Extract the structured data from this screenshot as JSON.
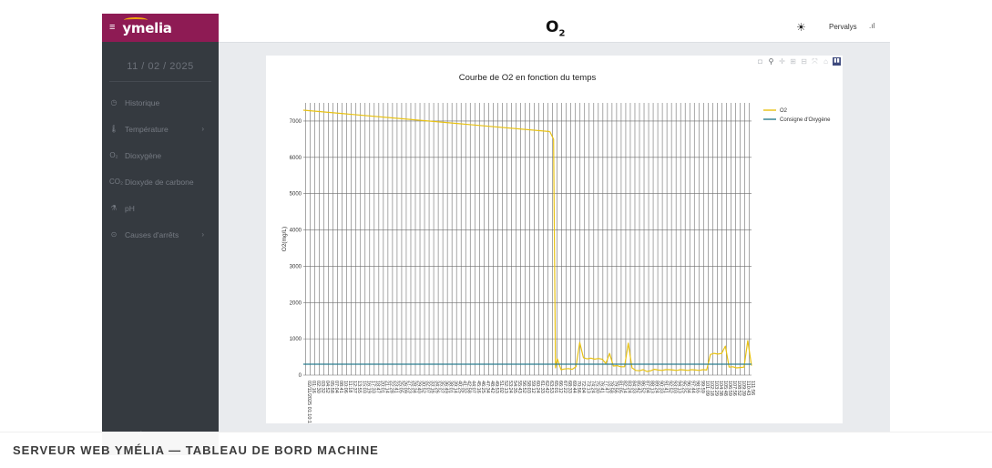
{
  "app": {
    "brand": "ymelia",
    "title_base": "O",
    "title_sub": "2",
    "user": "Pervalys"
  },
  "sidebar": {
    "date": "11 / 02 / 2025",
    "items": [
      {
        "label": "Historique",
        "icon": "history-icon",
        "glyph": "◷",
        "chevron": false
      },
      {
        "label": "Température",
        "icon": "thermometer-icon",
        "glyph": "🌡",
        "chevron": true
      },
      {
        "label": "Dioxygène",
        "icon": "o2-icon",
        "glyph": "O₂",
        "chevron": false
      },
      {
        "label": "Dioxyde de carbone",
        "icon": "co2-icon",
        "glyph": "CO₂",
        "chevron": false
      },
      {
        "label": "pH",
        "icon": "flask-icon",
        "glyph": "⚗",
        "chevron": false
      },
      {
        "label": "Causes d'arrêts",
        "icon": "stop-cause-icon",
        "glyph": "⊙",
        "chevron": true
      }
    ],
    "footer": "⌂"
  },
  "caption": "SERVEUR WEB YMÉLIA — TABLEAU DE BORD MACHINE",
  "colors": {
    "brand": "#8e1b54",
    "sidebar": "#353a40",
    "o2_series": "#e8c213",
    "setpoint_series": "#2a7d8f"
  },
  "chart_data": {
    "type": "line",
    "title": "Courbe de O2 en fonction du temps",
    "xlabel": "",
    "ylabel": "O2(mg/L)",
    "ylim": [
      0,
      7500
    ],
    "yticks": [
      0,
      1000,
      2000,
      3000,
      4000,
      5000,
      6000,
      7000
    ],
    "grid": true,
    "legend_position": "top-right",
    "n_points": 120,
    "x_tick_labels": [
      "02/11/2025 01:10:10",
      "01:16",
      "02:30",
      "03:32",
      "04:52",
      "05:58",
      "07:04",
      "08:41",
      "10:06",
      "11:18",
      "12:37",
      "13:55",
      "15:03",
      "16:19",
      "17:33",
      "18:47",
      "20:01",
      "21:14",
      "22:28",
      "23:41",
      "25:05",
      "26:09",
      "27:23",
      "28:34",
      "29:40",
      "30:52",
      "32:07",
      "33:16",
      "34:26",
      "35:37",
      "36:49",
      "38:01",
      "39:14",
      "40:25",
      "41:32",
      "42:58",
      "44:07",
      "45:16",
      "46:25",
      "47:34",
      "48:42",
      "49:53",
      "51:02",
      "52:13",
      "53:24",
      "54:35",
      "55:43",
      "56:52",
      "58:03",
      "59:12",
      "60:24",
      "61:33",
      "62:42",
      "63:53",
      "65:01",
      "66:12",
      "67:22",
      "68:33",
      "69:44",
      "70:56",
      "72:04",
      "73:13",
      "74:24",
      "75:30",
      "76:41",
      "77:47",
      "78:58",
      "79:56",
      "81:05",
      "82:14",
      "83:24",
      "84:33",
      "85:42",
      "86:52",
      "87:04",
      "88:13",
      "89:24",
      "90:33",
      "91:41",
      "92:52",
      "93:03",
      "94:13",
      "95:25",
      "96:34",
      "97:44",
      "98:55",
      "99:59",
      "101:09",
      "102:18",
      "103:29",
      "104:38",
      "105:48",
      "106:59",
      "107:56",
      "108:52",
      "109:39",
      "110:43",
      "111:56"
    ],
    "series": [
      {
        "name": "O2",
        "segments": [
          {
            "x": [
              0,
              66
            ],
            "y": [
              7300,
              6710
            ]
          },
          {
            "x": [
              66,
              67,
              67.5,
              68,
              69,
              70,
              71,
              72,
              73,
              74,
              75,
              76,
              77,
              78,
              79,
              80,
              81,
              82,
              83,
              84,
              85,
              86,
              87,
              88,
              89,
              90,
              91,
              92,
              93,
              94,
              95,
              96,
              97,
              98,
              99,
              100,
              101,
              102,
              103,
              104,
              105,
              106,
              107,
              108,
              109,
              110,
              111,
              112,
              113,
              114,
              115,
              116,
              117,
              118,
              119,
              120
            ],
            "y": [
              6710,
              6500,
              200,
              450,
              150,
              170,
              180,
              160,
              230,
              900,
              480,
              450,
              470,
              440,
              460,
              440,
              320,
              600,
              250,
              260,
              230,
              230,
              880,
              200,
              130,
              120,
              150,
              100,
              120,
              160,
              140,
              130,
              150,
              150,
              140,
              130,
              150,
              140,
              130,
              150,
              140,
              130,
              150,
              140,
              570,
              600,
              580,
              600,
              800,
              220,
              230,
              200,
              210,
              220,
              950,
              260
            ]
          }
        ]
      },
      {
        "name": "Consigne d'Oxygène",
        "segments": [
          {
            "x": [
              0,
              120
            ],
            "y": [
              300,
              300
            ]
          }
        ]
      }
    ]
  }
}
